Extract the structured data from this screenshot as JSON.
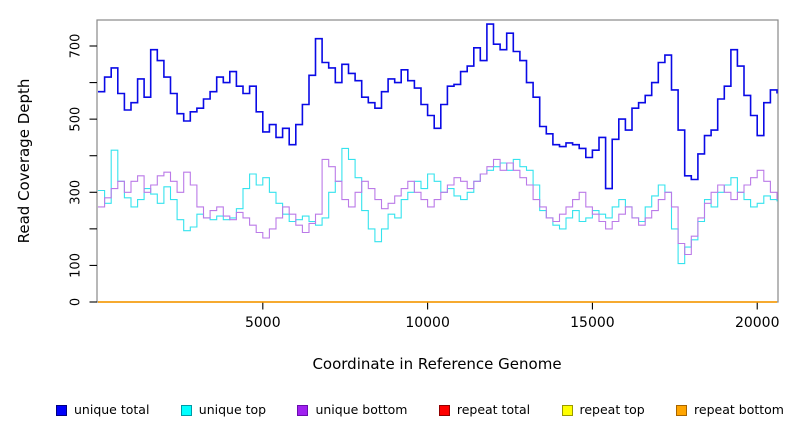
{
  "figure": {
    "background": "#ffffff",
    "box_color": "#898989",
    "tick_color": "#000000",
    "text_color": "#000000"
  },
  "chart_data": {
    "type": "line",
    "line_style": "step",
    "grid": false,
    "title": "",
    "xlabel": "Coordinate in Reference Genome",
    "ylabel": "Read Coverage Depth",
    "xlim": [
      0,
      20600
    ],
    "ylim": [
      0,
      770
    ],
    "x_ticks": [
      5000,
      10000,
      15000,
      20000
    ],
    "y_ticks": [
      0,
      100,
      200,
      300,
      400,
      500,
      600,
      700
    ],
    "y_tick_labels_shown": [
      0,
      100,
      300,
      500,
      700
    ],
    "x_start": 0,
    "x_step": 200,
    "legend_position": "bottom",
    "draw_order": [
      1,
      2,
      0,
      3,
      4,
      5
    ],
    "series": [
      {
        "name": "unique total",
        "line_color": "#0a0ae6",
        "legend_fill": "#0000fa",
        "legend_border": "#000080",
        "width": 1.6,
        "values": [
          575,
          615,
          640,
          570,
          525,
          545,
          610,
          560,
          690,
          660,
          615,
          570,
          515,
          495,
          520,
          530,
          555,
          575,
          615,
          600,
          630,
          590,
          570,
          590,
          520,
          465,
          485,
          450,
          475,
          430,
          485,
          540,
          620,
          720,
          655,
          640,
          600,
          650,
          625,
          605,
          560,
          545,
          530,
          575,
          610,
          600,
          635,
          605,
          585,
          540,
          510,
          475,
          540,
          590,
          595,
          630,
          645,
          695,
          660,
          760,
          705,
          690,
          735,
          685,
          660,
          600,
          560,
          480,
          460,
          430,
          425,
          435,
          430,
          420,
          395,
          415,
          450,
          310,
          445,
          500,
          470,
          530,
          545,
          565,
          600,
          655,
          675,
          580,
          470,
          345,
          335,
          405,
          455,
          470,
          555,
          590,
          690,
          645,
          565,
          510,
          455,
          545,
          580,
          570
        ]
      },
      {
        "name": "unique top",
        "line_color": "#35e3ee",
        "legend_fill": "#00ffff",
        "legend_border": "#009aa6",
        "width": 1.1,
        "values": [
          305,
          270,
          415,
          330,
          285,
          260,
          280,
          310,
          295,
          270,
          315,
          280,
          225,
          195,
          205,
          240,
          230,
          225,
          235,
          225,
          230,
          255,
          310,
          350,
          320,
          340,
          300,
          270,
          240,
          220,
          225,
          235,
          220,
          210,
          230,
          300,
          330,
          420,
          390,
          340,
          250,
          200,
          165,
          200,
          240,
          230,
          280,
          300,
          330,
          310,
          350,
          330,
          300,
          310,
          290,
          280,
          300,
          330,
          350,
          360,
          370,
          380,
          360,
          390,
          370,
          360,
          320,
          250,
          230,
          210,
          200,
          230,
          250,
          220,
          230,
          250,
          240,
          230,
          260,
          280,
          260,
          230,
          220,
          260,
          290,
          320,
          300,
          200,
          105,
          150,
          170,
          220,
          280,
          260,
          300,
          320,
          340,
          300,
          280,
          260,
          270,
          290,
          280,
          275
        ]
      },
      {
        "name": "unique bottom",
        "line_color": "#bb7ae8",
        "legend_fill": "#a020f0",
        "legend_border": "#6a0dad",
        "width": 1.1,
        "values": [
          260,
          285,
          310,
          330,
          300,
          330,
          345,
          300,
          320,
          345,
          355,
          330,
          300,
          355,
          320,
          260,
          230,
          250,
          260,
          235,
          225,
          245,
          230,
          210,
          190,
          175,
          200,
          230,
          260,
          240,
          210,
          190,
          215,
          240,
          390,
          370,
          330,
          280,
          260,
          300,
          330,
          310,
          280,
          255,
          270,
          290,
          310,
          330,
          300,
          280,
          260,
          280,
          300,
          320,
          340,
          330,
          310,
          330,
          350,
          370,
          390,
          360,
          380,
          360,
          340,
          320,
          280,
          260,
          230,
          220,
          240,
          260,
          280,
          300,
          260,
          240,
          220,
          200,
          220,
          240,
          260,
          230,
          210,
          230,
          250,
          280,
          300,
          260,
          160,
          130,
          180,
          230,
          270,
          300,
          320,
          300,
          280,
          300,
          320,
          340,
          360,
          330,
          300,
          280
        ]
      },
      {
        "name": "repeat total",
        "line_color": "#dd0000",
        "legend_fill": "#ff0000",
        "legend_border": "#900000",
        "width": 1.2,
        "constant": 0
      },
      {
        "name": "repeat top",
        "line_color": "#f2f200",
        "legend_fill": "#ffff00",
        "legend_border": "#999900",
        "width": 1.2,
        "constant": 0
      },
      {
        "name": "repeat bottom",
        "line_color": "#ff9f00",
        "legend_fill": "#ffa500",
        "legend_border": "#a66400",
        "width": 1.2,
        "constant": 0
      }
    ]
  }
}
